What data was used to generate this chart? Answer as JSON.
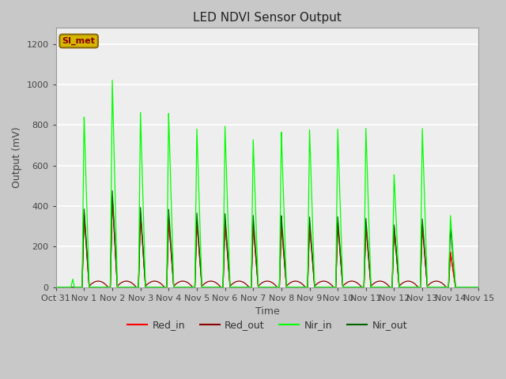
{
  "title": "LED NDVI Sensor Output",
  "xlabel": "Time",
  "ylabel": "Output (mV)",
  "ylim": [
    0,
    1280
  ],
  "yticks": [
    0,
    200,
    400,
    600,
    800,
    1000,
    1200
  ],
  "xtick_labels": [
    "Oct 31",
    "Nov 1",
    "Nov 2",
    "Nov 3",
    "Nov 4",
    "Nov 5",
    "Nov 6",
    "Nov 7",
    "Nov 8",
    "Nov 9",
    "Nov 10",
    "Nov 11",
    "Nov 12",
    "Nov 13",
    "Nov 14",
    "Nov 15"
  ],
  "fig_bg_color": "#c8c8c8",
  "plot_bg_color": "#eeeeee",
  "grid_color": "#ffffff",
  "title_fontsize": 11,
  "tick_fontsize": 8,
  "axis_label_fontsize": 9,
  "legend_box_facecolor": "#d4b800",
  "legend_box_edgecolor": "#8b6914",
  "legend_text_color": "#8b0000",
  "colors": {
    "Red_in": "#ff0000",
    "Red_out": "#8b0000",
    "Nir_in": "#00ff00",
    "Nir_out": "#006400"
  },
  "annotation_text": "SI_met",
  "spike_days": [
    1,
    2,
    3,
    4,
    5,
    6,
    7,
    8,
    9,
    10,
    11,
    12,
    13,
    14
  ],
  "nir_in_peaks": [
    850,
    1030,
    865,
    860,
    790,
    800,
    730,
    770,
    785,
    785,
    785,
    560,
    790,
    355
  ],
  "nir_out_peaks": [
    390,
    480,
    395,
    385,
    370,
    365,
    355,
    355,
    350,
    350,
    340,
    310,
    340,
    295
  ],
  "red_in_peaks": [
    370,
    450,
    370,
    340,
    330,
    330,
    310,
    315,
    315,
    320,
    310,
    300,
    310,
    175
  ],
  "red_out_peaks": [
    360,
    440,
    365,
    335,
    325,
    325,
    305,
    310,
    310,
    315,
    305,
    295,
    305,
    170
  ],
  "red_out_baseline_hump": 30,
  "nir_in_initial_spike_day": 0.6,
  "nir_in_initial_spike_val": 40,
  "spike_rise": 0.07,
  "spike_fall": 0.18
}
